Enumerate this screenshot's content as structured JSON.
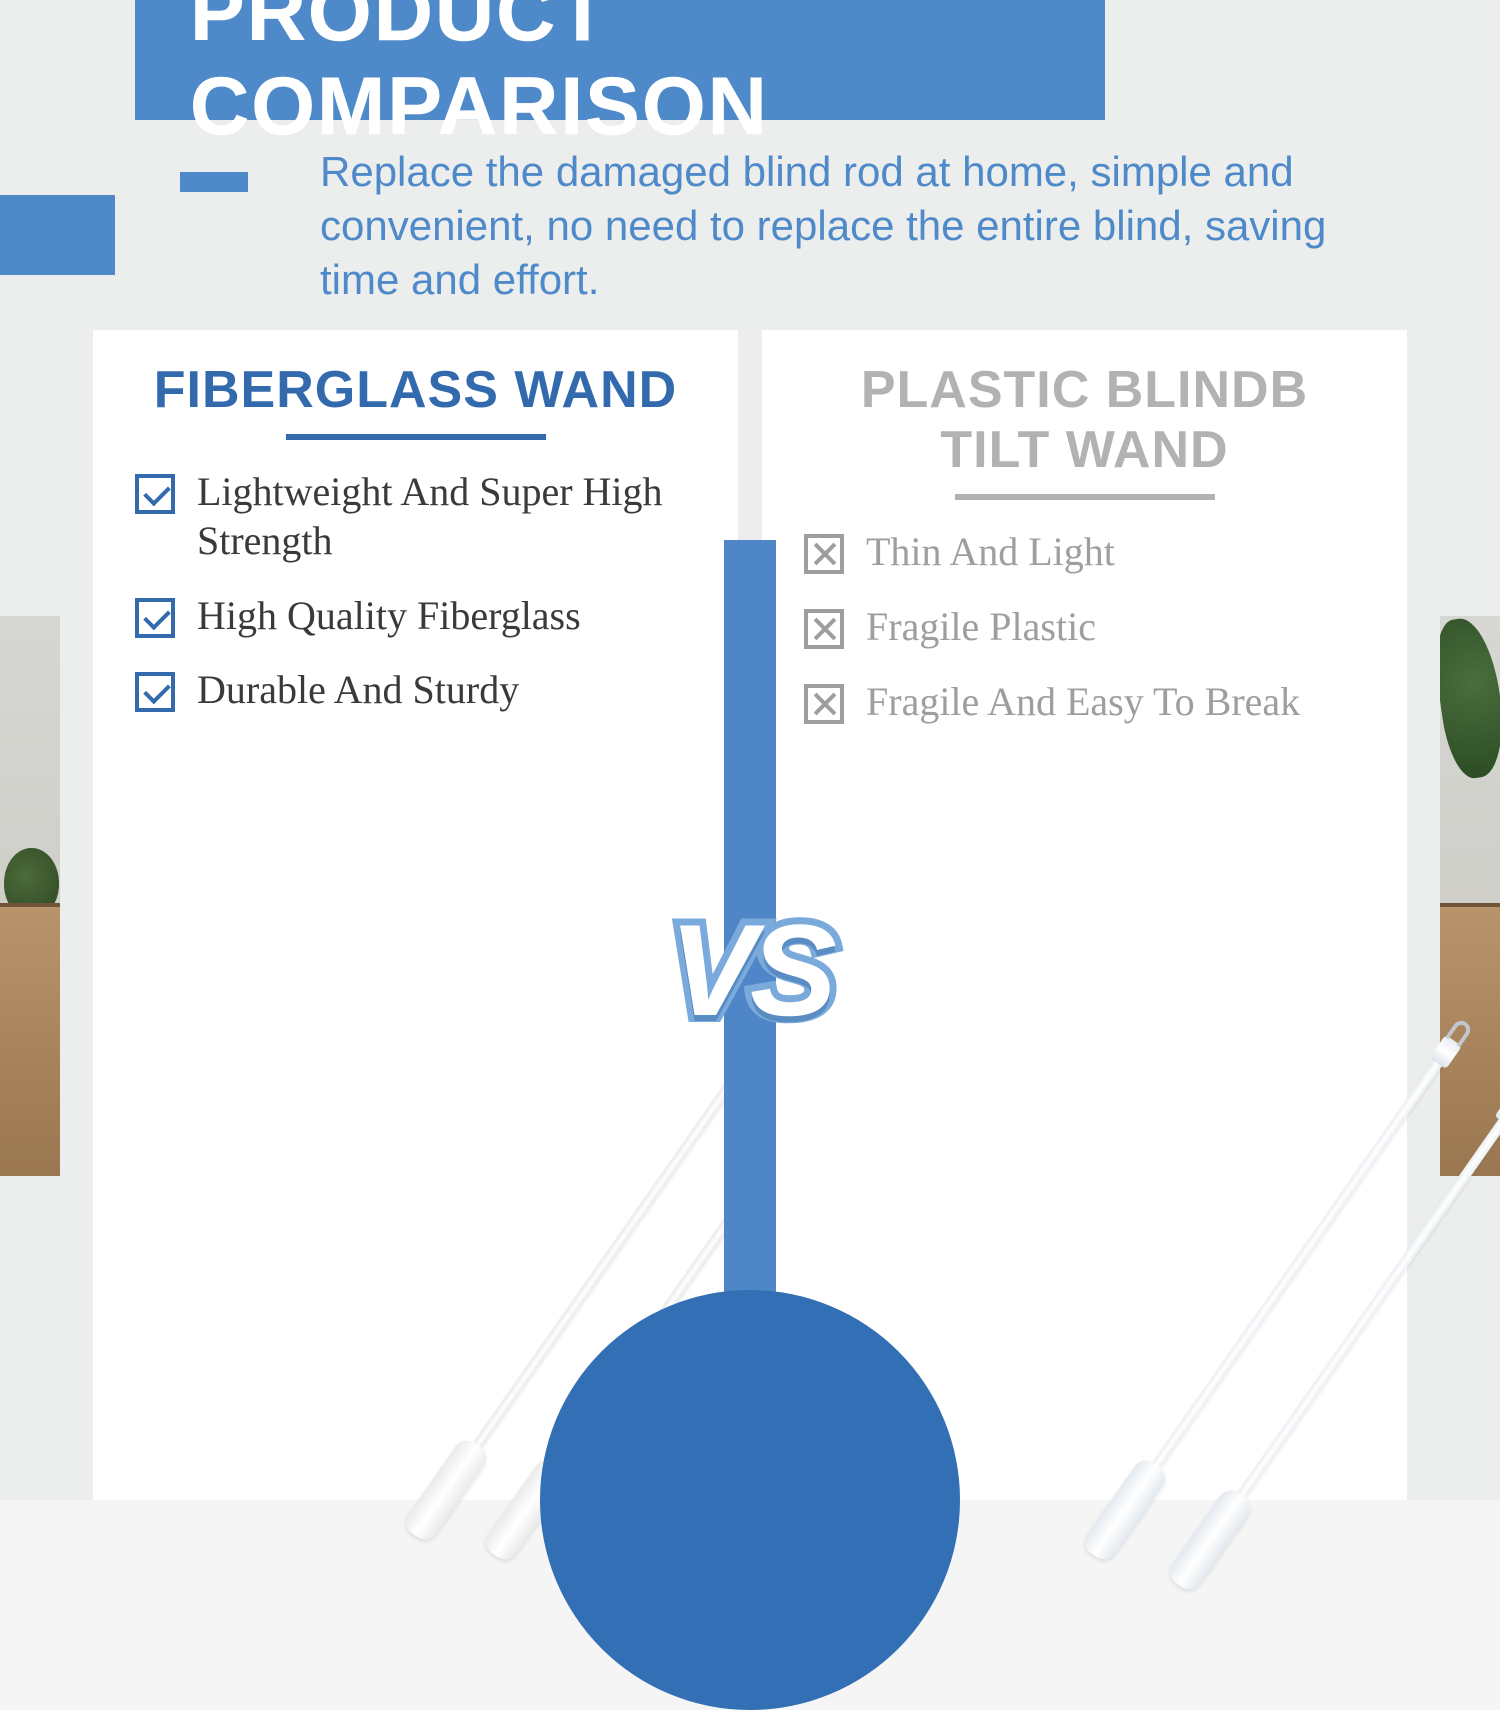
{
  "colors": {
    "primary_blue": "#4e8ac9",
    "deep_blue": "#336aad",
    "circle_blue": "#326fb4",
    "muted_gray": "#9e9e9e",
    "page_bg": "#eceded",
    "white": "#ffffff",
    "text_dark": "#3a3a3a"
  },
  "title": "PRODUCT COMPARISON",
  "description": "Replace the damaged blind rod at home, simple and convenient, no need to replace the entire blind, saving time and effort.",
  "vs_label": "VS",
  "left": {
    "heading": "FIBERGLASS WAND",
    "features": [
      "Lightweight And Super High Strength",
      "High Quality Fiberglass",
      "Durable And Sturdy"
    ],
    "icon": "check"
  },
  "right": {
    "heading_line1": "PLASTIC BLINDB",
    "heading_line2": "TILT WAND",
    "features": [
      "Thin And Light",
      "Fragile Plastic",
      "Fragile And Easy To Break"
    ],
    "icon": "cross"
  }
}
